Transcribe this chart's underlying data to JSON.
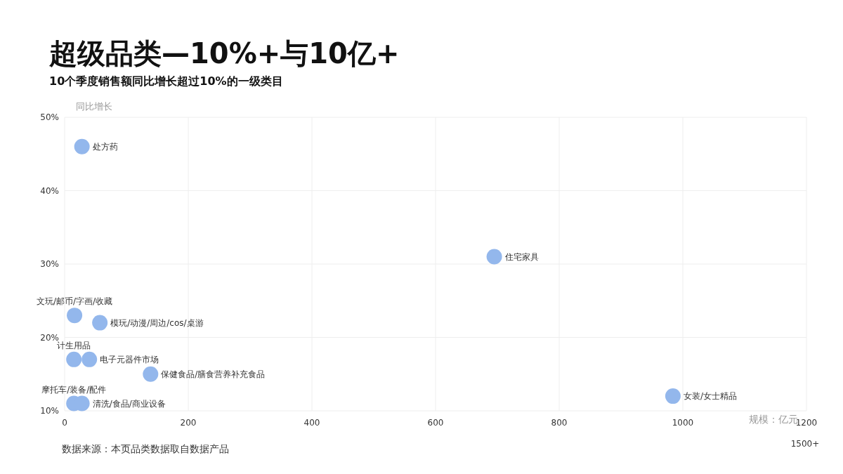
{
  "chart_data": {
    "type": "scatter",
    "title": "超级品类—10%+与10亿+",
    "subtitle": "10个季度销售额同比增长超过10%的一级类目",
    "xlabel": "规模：亿元",
    "ylabel": "同比增长",
    "x": [
      28,
      695,
      16,
      57,
      15,
      40,
      139,
      15,
      28,
      984
    ],
    "values": [
      46,
      31,
      23,
      22,
      17,
      17,
      15,
      11,
      11,
      12
    ],
    "color": "#93b7ec",
    "marker": "circle",
    "grid": true,
    "xlim": [
      0,
      1200
    ],
    "xticks": [
      0,
      200,
      400,
      600,
      800,
      1000,
      1200
    ],
    "ylim": [
      10,
      50
    ],
    "yticks": [
      {
        "value": 10,
        "label": "10%"
      },
      {
        "value": 20,
        "label": "20%"
      },
      {
        "value": 30,
        "label": "30%"
      },
      {
        "value": 40,
        "label": "40%"
      },
      {
        "value": 50,
        "label": "50%"
      }
    ],
    "annotations": [
      {
        "text": "处方药",
        "x": 28,
        "y": 46
      },
      {
        "text": "住宅家具",
        "x": 695,
        "y": 31
      },
      {
        "text": "文玩/邮币/字画/收藏",
        "x": 16,
        "y": 23
      },
      {
        "text": "模玩/动漫/周边/cos/桌游",
        "x": 57,
        "y": 22
      },
      {
        "text": "计生用品",
        "x": 15,
        "y": 17
      },
      {
        "text": "电子元器件市场",
        "x": 40,
        "y": 17
      },
      {
        "text": "保健食品/膳食营养补充食品",
        "x": 139,
        "y": 15
      },
      {
        "text": "摩托车/装备/配件",
        "x": 15,
        "y": 11
      },
      {
        "text": "清洗/食品/商业设备",
        "x": 28,
        "y": 11
      },
      {
        "text": "女装/女士精品",
        "x": 984,
        "y": 12
      },
      "1500+",
      "数据来源：本页品类数据取自数据产品"
    ]
  }
}
